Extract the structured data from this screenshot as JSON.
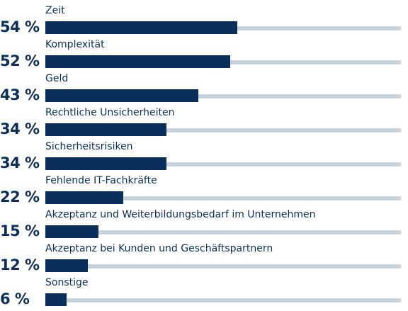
{
  "chart_data": {
    "type": "bar",
    "orientation": "horizontal",
    "unit": "%",
    "xlim": [
      0,
      100
    ],
    "categories": [
      "Zeit",
      "Komplexität",
      "Geld",
      "Rechtliche Unsicherheiten",
      "Sicherheitsrisiken",
      "Fehlende IT-Fachkräfte",
      "Akzeptanz und Weiterbildungsbedarf im Unternehmen",
      "Akzeptanz bei Kunden und Geschäftspartnern",
      "Sonstige"
    ],
    "values": [
      54,
      52,
      43,
      34,
      34,
      22,
      15,
      12,
      6
    ],
    "labels": [
      "54 %",
      "52 %",
      "43 %",
      "34 %",
      "34 %",
      "22 %",
      "15 %",
      "12 %",
      "6 %"
    ],
    "bar_color": "#0b2f5b",
    "track_color": "#c9d3df",
    "text_color": "#0b2f5b"
  }
}
